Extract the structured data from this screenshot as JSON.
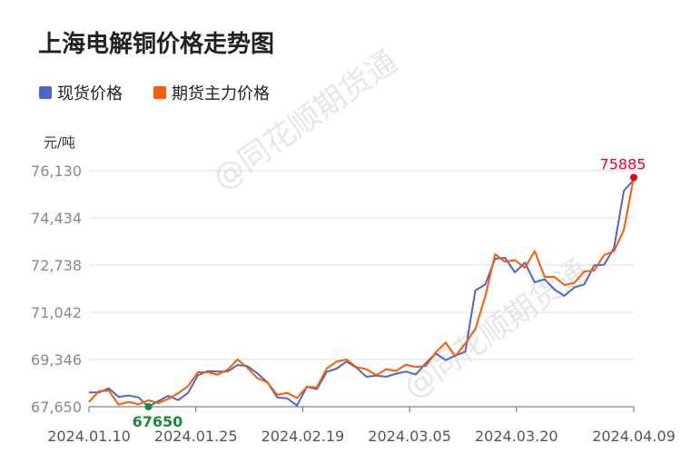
{
  "title": "上海电解铜价格走势图",
  "watermark": "@同花顺期货通",
  "chart_data": {
    "type": "line",
    "title": "上海电解铜价格走势图",
    "ylabel": "元/吨",
    "ylim": [
      67650,
      76130
    ],
    "yticks": [
      "67,650",
      "69,346",
      "71,042",
      "72,738",
      "74,434",
      "76,130"
    ],
    "xticks": [
      "2024.01.10",
      "2024.01.25",
      "2024.02.19",
      "2024.03.05",
      "2024.03.20",
      "2024.04.09"
    ],
    "grid": true,
    "legend_position": "top-left",
    "series": [
      {
        "name": "现货价格",
        "color": "#4a68cc",
        "values": [
          68162,
          68162,
          68313,
          68000,
          68053,
          67987,
          67650,
          67856,
          68041,
          67888,
          68150,
          68781,
          68933,
          68911,
          68911,
          69151,
          69108,
          68846,
          68531,
          67987,
          67954,
          67693,
          68368,
          68280,
          68900,
          69020,
          69270,
          69053,
          68727,
          68770,
          68727,
          68836,
          68911,
          68803,
          69216,
          69564,
          69325,
          69488,
          69630,
          71825,
          72043,
          72967,
          72999,
          72478,
          72826,
          72119,
          72228,
          71860,
          71632,
          71937,
          72043,
          72728,
          72750,
          73349,
          75414,
          75794
        ]
      },
      {
        "name": "期货主力价格",
        "color": "#ff5a00",
        "values": [
          67824,
          68205,
          68226,
          67726,
          67824,
          67737,
          67878,
          67780,
          67933,
          68129,
          68390,
          68890,
          68890,
          68803,
          68977,
          69346,
          69053,
          68672,
          68531,
          68075,
          68150,
          67965,
          68368,
          68346,
          69020,
          69270,
          69346,
          69075,
          68999,
          68781,
          68999,
          68933,
          69162,
          69075,
          69108,
          69597,
          69956,
          69466,
          69923,
          70434,
          71608,
          73130,
          72858,
          72913,
          72641,
          73239,
          72315,
          72315,
          72021,
          72097,
          72510,
          72543,
          73097,
          73239,
          74000,
          75885
        ]
      }
    ],
    "annotations": [
      {
        "label": "67650",
        "series": "现货价格",
        "index": 6,
        "color": "#1a8a3a"
      },
      {
        "label": "75885",
        "series": "期货主力价格",
        "index": 55,
        "color": "#f00020"
      }
    ]
  }
}
